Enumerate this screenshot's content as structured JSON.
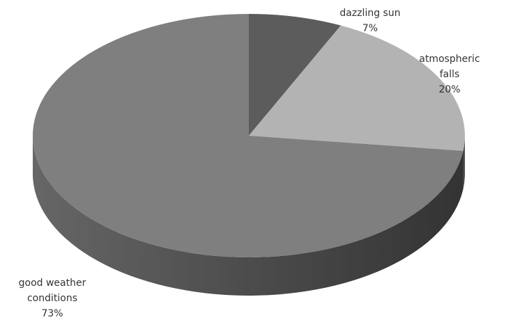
{
  "chart_data": {
    "type": "pie3d",
    "categories": [
      "dazzling sun",
      "atmospheric falls",
      "good weather conditions"
    ],
    "values": [
      7,
      20,
      73
    ],
    "value_labels": [
      "7%",
      "20%",
      "73%"
    ],
    "colors": [
      "#5c5c5c",
      "#b3b3b3",
      "#7f7f7f"
    ]
  }
}
